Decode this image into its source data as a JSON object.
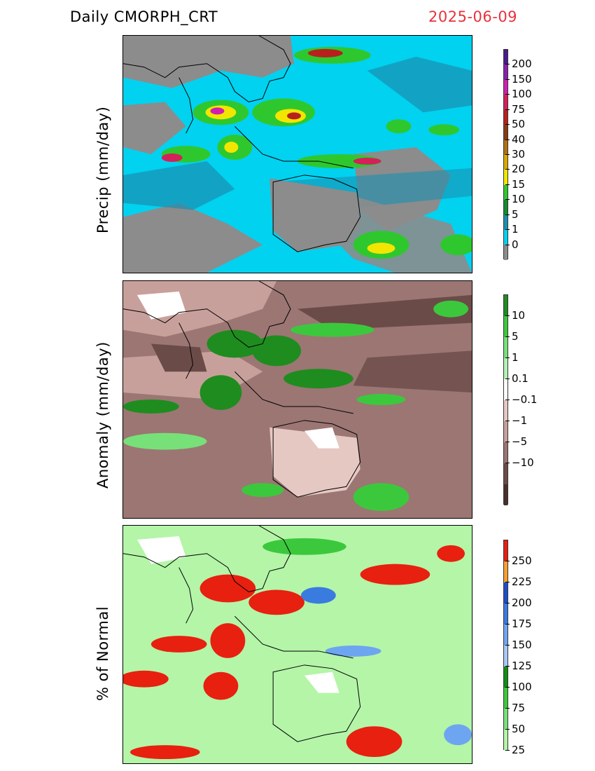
{
  "header": {
    "title": "Daily CMORPH_CRT",
    "date": "2025-06-09"
  },
  "panels": [
    {
      "ylabel": "Precip (mm/day)",
      "colorbar": {
        "labels": [
          "200",
          "150",
          "100",
          "75",
          "50",
          "40",
          "30",
          "20",
          "15",
          "10",
          "5",
          "1",
          "0"
        ],
        "colors": [
          "#4b1a8c",
          "#8a1fb0",
          "#d01fb0",
          "#d5205a",
          "#b8201e",
          "#8a3a0f",
          "#b07010",
          "#d8a800",
          "#f2e600",
          "#2ec82e",
          "#128c2e",
          "#1a8fb0",
          "#00d2f0",
          "#8c8c8c"
        ]
      }
    },
    {
      "ylabel": "Anomaly (mm/day)",
      "colorbar": {
        "labels": [
          "10",
          "5",
          "1",
          "0.1",
          "−0.1",
          "−1",
          "−5",
          "−10"
        ],
        "colors": [
          "#1f8c1f",
          "#3cc83c",
          "#78e078",
          "#b4f0b4",
          "#ffffff",
          "#e6c8c3",
          "#c8a09b",
          "#9b7673",
          "#6b4b48",
          "#4a2f2c"
        ]
      }
    },
    {
      "ylabel": "% of Normal",
      "colorbar": {
        "labels": [
          "250",
          "225",
          "200",
          "175",
          "150",
          "125",
          "100",
          "75",
          "50",
          "25"
        ],
        "colors": [
          "#e8200f",
          "#f6a030",
          "#1c50c8",
          "#3a7be0",
          "#6ea5f0",
          "#a8c8f8",
          "#138c13",
          "#3cc83c",
          "#78e078",
          "#b4f5a8"
        ]
      }
    }
  ]
}
